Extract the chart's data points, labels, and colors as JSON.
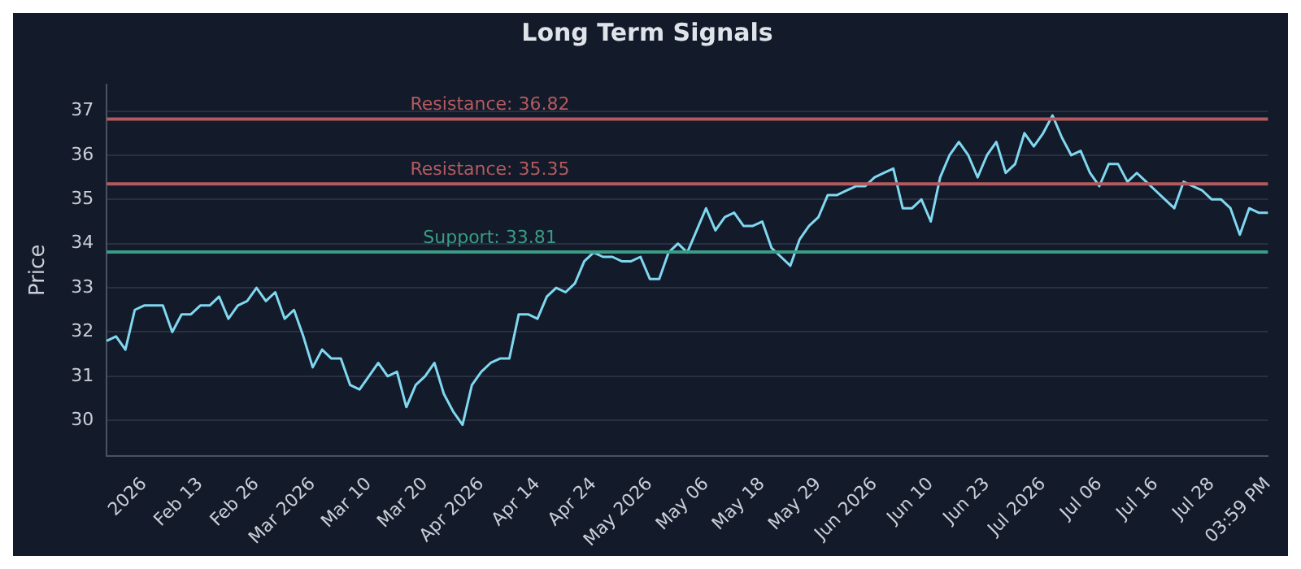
{
  "chart_data": {
    "type": "line",
    "title": "Long Term Signals",
    "ylabel": "Price",
    "categories": [
      null,
      null,
      null,
      null,
      "2026",
      null,
      null,
      null,
      null,
      null,
      "Feb 13",
      null,
      null,
      null,
      null,
      null,
      "Feb 26",
      null,
      null,
      null,
      null,
      null,
      "Mar 2026",
      null,
      null,
      null,
      null,
      null,
      "Mar 10",
      null,
      null,
      null,
      null,
      null,
      "Mar 20",
      null,
      null,
      null,
      null,
      null,
      "Apr 2026",
      null,
      null,
      null,
      null,
      null,
      "Apr 14",
      null,
      null,
      null,
      null,
      null,
      "Apr 24",
      null,
      null,
      null,
      null,
      null,
      "May 2026",
      null,
      null,
      null,
      null,
      null,
      "May 06",
      null,
      null,
      null,
      null,
      null,
      "May 18",
      null,
      null,
      null,
      null,
      null,
      "May 29",
      null,
      null,
      null,
      null,
      null,
      "Jun 2026",
      null,
      null,
      null,
      null,
      null,
      "Jun 10",
      null,
      null,
      null,
      null,
      null,
      "Jun 23",
      null,
      null,
      null,
      null,
      null,
      "Jul 2026",
      null,
      null,
      null,
      null,
      null,
      "Jul 06",
      null,
      null,
      null,
      null,
      null,
      "Jul 16",
      null,
      null,
      null,
      null,
      null,
      "Jul 28",
      null,
      null,
      null,
      null,
      null,
      "03:59 PM"
    ],
    "series": [
      {
        "color": "#7fd8f0",
        "values": [
          31.8,
          31.9,
          31.6,
          32.5,
          32.6,
          32.6,
          32.6,
          32.0,
          32.4,
          32.4,
          32.6,
          32.6,
          32.8,
          32.3,
          32.6,
          32.7,
          33.0,
          32.7,
          32.9,
          32.3,
          32.5,
          31.9,
          31.2,
          31.6,
          31.4,
          31.4,
          30.8,
          30.7,
          31.0,
          31.3,
          31.0,
          31.1,
          30.3,
          30.8,
          31.0,
          31.3,
          30.6,
          30.2,
          29.9,
          30.8,
          31.1,
          31.3,
          31.4,
          31.4,
          32.4,
          32.4,
          32.3,
          32.8,
          33.0,
          32.9,
          33.1,
          33.6,
          33.8,
          33.7,
          33.7,
          33.6,
          33.6,
          33.7,
          33.2,
          33.2,
          33.8,
          34.0,
          33.8,
          34.3,
          34.8,
          34.3,
          34.6,
          34.7,
          34.4,
          34.4,
          34.5,
          33.9,
          33.7,
          33.5,
          34.1,
          34.4,
          34.6,
          35.1,
          35.1,
          35.2,
          35.3,
          35.3,
          35.5,
          35.6,
          35.7,
          34.8,
          34.8,
          35.0,
          34.5,
          35.5,
          36.0,
          36.3,
          36.0,
          35.5,
          36.0,
          36.3,
          35.6,
          35.8,
          36.5,
          36.2,
          36.5,
          36.9,
          36.4,
          36.0,
          36.1,
          35.6,
          35.3,
          35.8,
          35.8,
          35.4,
          35.6,
          35.4,
          35.2,
          35.0,
          34.8,
          35.4,
          35.3,
          35.2,
          35.0,
          35.0,
          34.8,
          34.2,
          34.8,
          34.7,
          34.7
        ]
      }
    ],
    "ylim": [
      29.2,
      37.6
    ],
    "yticks": [
      30,
      31,
      32,
      33,
      34,
      35,
      36,
      37
    ],
    "grid": "y",
    "legend": false,
    "marker": "none",
    "line_style": "solid",
    "ref_lines": [
      {
        "axis": "y",
        "value": 36.82,
        "label": "Resistance: 36.82",
        "color": "#b35a5f"
      },
      {
        "axis": "y",
        "value": 35.35,
        "label": "Resistance: 35.35",
        "color": "#b35a5f"
      },
      {
        "axis": "y",
        "value": 33.81,
        "label": "Support: 33.81",
        "color": "#3a9c84"
      }
    ]
  }
}
